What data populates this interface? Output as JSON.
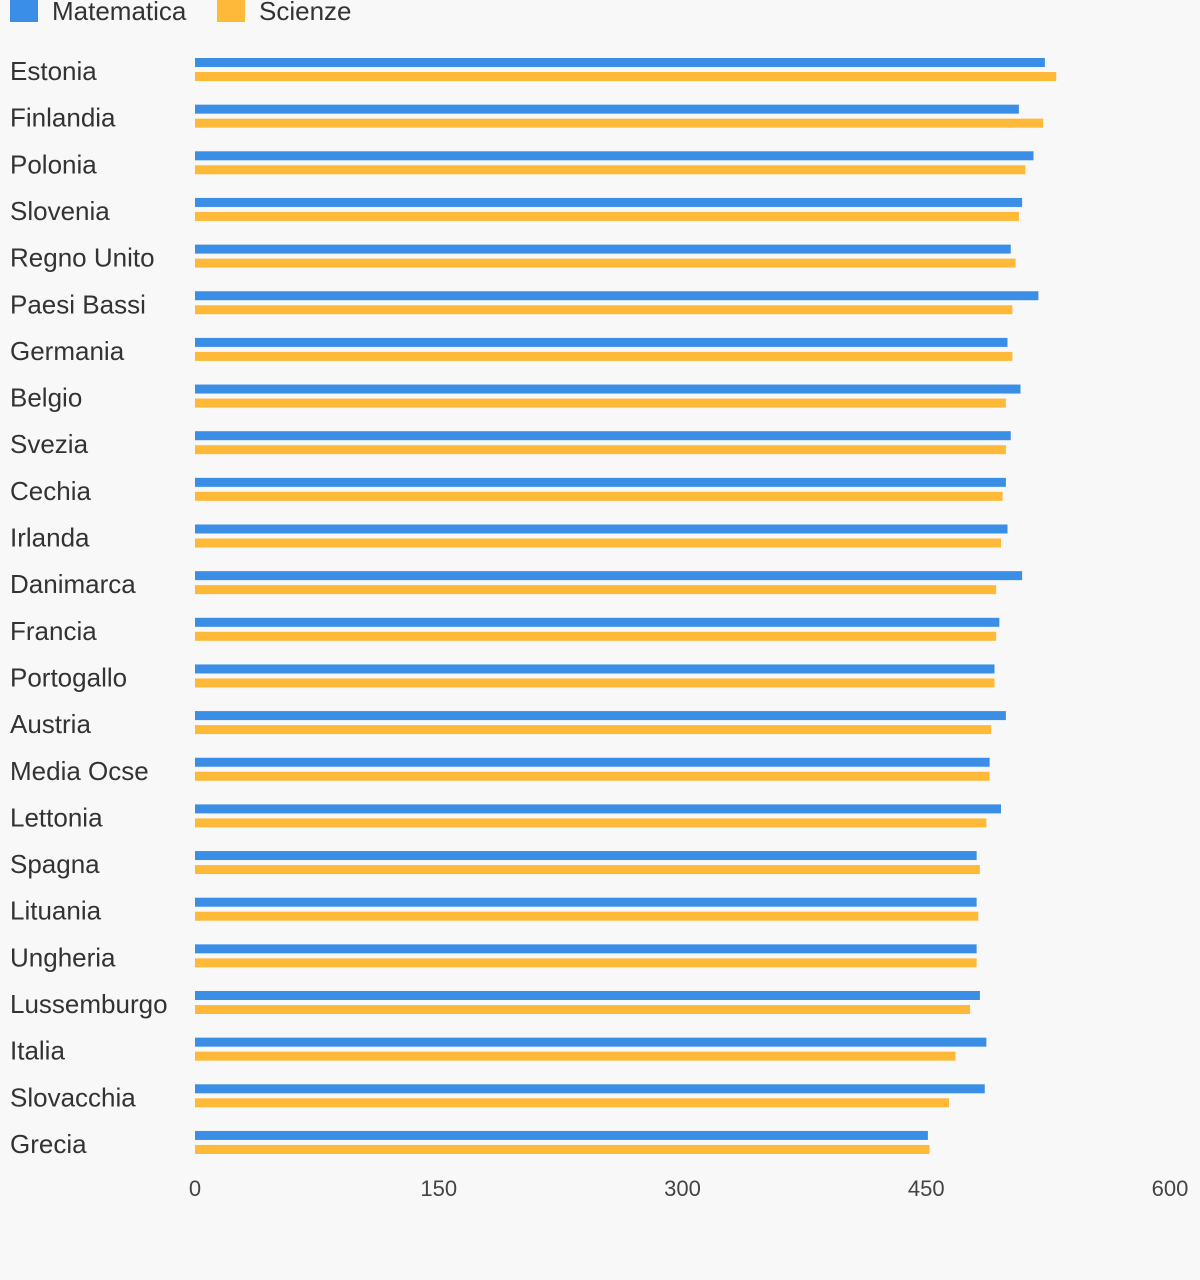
{
  "chart_data": {
    "type": "bar",
    "orientation": "horizontal",
    "categories": [
      "Estonia",
      "Finlandia",
      "Polonia",
      "Slovenia",
      "Regno Unito",
      "Paesi Bassi",
      "Germania",
      "Belgio",
      "Svezia",
      "Cechia",
      "Irlanda",
      "Danimarca",
      "Francia",
      "Portogallo",
      "Austria",
      "Media Ocse",
      "Lettonia",
      "Spagna",
      "Lituania",
      "Ungheria",
      "Lussemburgo",
      "Italia",
      "Slovacchia",
      "Grecia"
    ],
    "series": [
      {
        "name": "Matematica",
        "color": "#3a8ee6",
        "values": [
          523,
          507,
          516,
          509,
          502,
          519,
          500,
          508,
          502,
          499,
          500,
          509,
          495,
          492,
          499,
          489,
          496,
          481,
          481,
          481,
          483,
          487,
          486,
          451
        ]
      },
      {
        "name": "Scienze",
        "color": "#ffb938",
        "values": [
          530,
          522,
          511,
          507,
          505,
          503,
          503,
          499,
          499,
          497,
          496,
          493,
          493,
          492,
          490,
          489,
          487,
          483,
          482,
          481,
          477,
          468,
          464,
          452
        ]
      }
    ],
    "xlim": [
      0,
      600
    ],
    "xticks": [
      "0",
      "150",
      "300",
      "450",
      "600"
    ],
    "legend_position": "top-left",
    "grid": false
  }
}
